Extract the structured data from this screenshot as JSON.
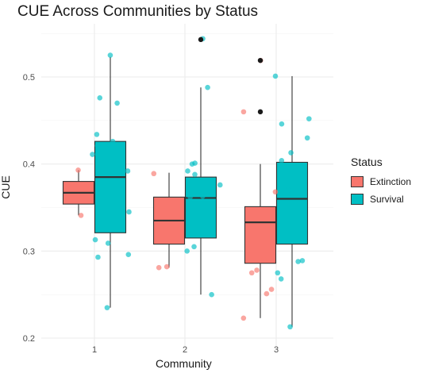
{
  "chart_data": {
    "type": "boxplot",
    "title": "CUE Across Communities by Status",
    "xlabel": "Community",
    "ylabel": "CUE",
    "categories": [
      "1",
      "2",
      "3"
    ],
    "ylim": [
      0.2,
      0.55
    ],
    "yticks": [
      "0.2",
      "0.3",
      "0.4",
      "0.5"
    ],
    "grid": true,
    "legend": {
      "title": "Status",
      "placement": "right"
    },
    "series": [
      {
        "name": "Extinction",
        "color": "#F8766D",
        "boxes": [
          {
            "community": "1",
            "min": 0.341,
            "q1": 0.354,
            "median": 0.367,
            "q3": 0.38,
            "max": 0.393,
            "outliers": []
          },
          {
            "community": "2",
            "min": 0.281,
            "q1": 0.308,
            "median": 0.335,
            "q3": 0.362,
            "max": 0.39,
            "outliers": []
          },
          {
            "community": "3",
            "min": 0.223,
            "q1": 0.286,
            "median": 0.333,
            "q3": 0.351,
            "max": 0.4,
            "outliers": [
              0.519,
              0.46
            ]
          }
        ],
        "points": [
          {
            "x": "1",
            "y": 0.393
          },
          {
            "x": "1",
            "y": 0.341
          },
          {
            "x": "2",
            "y": 0.389
          },
          {
            "x": "2",
            "y": 0.281
          },
          {
            "x": "2",
            "y": 0.282
          },
          {
            "x": "3",
            "y": 0.519
          },
          {
            "x": "3",
            "y": 0.46
          },
          {
            "x": "3",
            "y": 0.368
          },
          {
            "x": "3",
            "y": 0.29
          },
          {
            "x": "3",
            "y": 0.278
          },
          {
            "x": "3",
            "y": 0.275
          },
          {
            "x": "3",
            "y": 0.256
          },
          {
            "x": "3",
            "y": 0.251
          },
          {
            "x": "3",
            "y": 0.223
          }
        ]
      },
      {
        "name": "Survival",
        "color": "#00BFC4",
        "boxes": [
          {
            "community": "1",
            "min": 0.235,
            "q1": 0.321,
            "median": 0.385,
            "q3": 0.426,
            "max": 0.523,
            "outliers": []
          },
          {
            "community": "2",
            "min": 0.25,
            "q1": 0.315,
            "median": 0.361,
            "q3": 0.385,
            "max": 0.488,
            "outliers": [
              0.543
            ]
          },
          {
            "community": "3",
            "min": 0.213,
            "q1": 0.308,
            "median": 0.36,
            "q3": 0.402,
            "max": 0.501,
            "outliers": []
          }
        ],
        "points": [
          {
            "x": "1",
            "y": 0.525
          },
          {
            "x": "1",
            "y": 0.476
          },
          {
            "x": "1",
            "y": 0.47
          },
          {
            "x": "1",
            "y": 0.434
          },
          {
            "x": "1",
            "y": 0.426
          },
          {
            "x": "1",
            "y": 0.422
          },
          {
            "x": "1",
            "y": 0.421
          },
          {
            "x": "1",
            "y": 0.411
          },
          {
            "x": "1",
            "y": 0.392
          },
          {
            "x": "1",
            "y": 0.345
          },
          {
            "x": "1",
            "y": 0.313
          },
          {
            "x": "1",
            "y": 0.309
          },
          {
            "x": "1",
            "y": 0.296
          },
          {
            "x": "1",
            "y": 0.293
          },
          {
            "x": "1",
            "y": 0.235
          },
          {
            "x": "2",
            "y": 0.544
          },
          {
            "x": "2",
            "y": 0.488
          },
          {
            "x": "2",
            "y": 0.4
          },
          {
            "x": "2",
            "y": 0.392
          },
          {
            "x": "2",
            "y": 0.376
          },
          {
            "x": "2",
            "y": 0.368
          },
          {
            "x": "2",
            "y": 0.362
          },
          {
            "x": "2",
            "y": 0.363
          },
          {
            "x": "2",
            "y": 0.305
          },
          {
            "x": "2",
            "y": 0.3
          },
          {
            "x": "2",
            "y": 0.25
          },
          {
            "x": "2",
            "y": 0.401
          },
          {
            "x": "2",
            "y": 0.388
          },
          {
            "x": "3",
            "y": 0.501
          },
          {
            "x": "3",
            "y": 0.452
          },
          {
            "x": "3",
            "y": 0.446
          },
          {
            "x": "3",
            "y": 0.43
          },
          {
            "x": "3",
            "y": 0.413
          },
          {
            "x": "3",
            "y": 0.404
          },
          {
            "x": "3",
            "y": 0.397
          },
          {
            "x": "3",
            "y": 0.37
          },
          {
            "x": "3",
            "y": 0.289
          },
          {
            "x": "3",
            "y": 0.288
          },
          {
            "x": "3",
            "y": 0.275
          },
          {
            "x": "3",
            "y": 0.268
          },
          {
            "x": "3",
            "y": 0.213
          }
        ]
      }
    ],
    "highlighted_outliers": [
      {
        "x": "2",
        "y": 0.543
      },
      {
        "x": "3",
        "y": 0.519
      },
      {
        "x": "3",
        "y": 0.46
      }
    ]
  }
}
